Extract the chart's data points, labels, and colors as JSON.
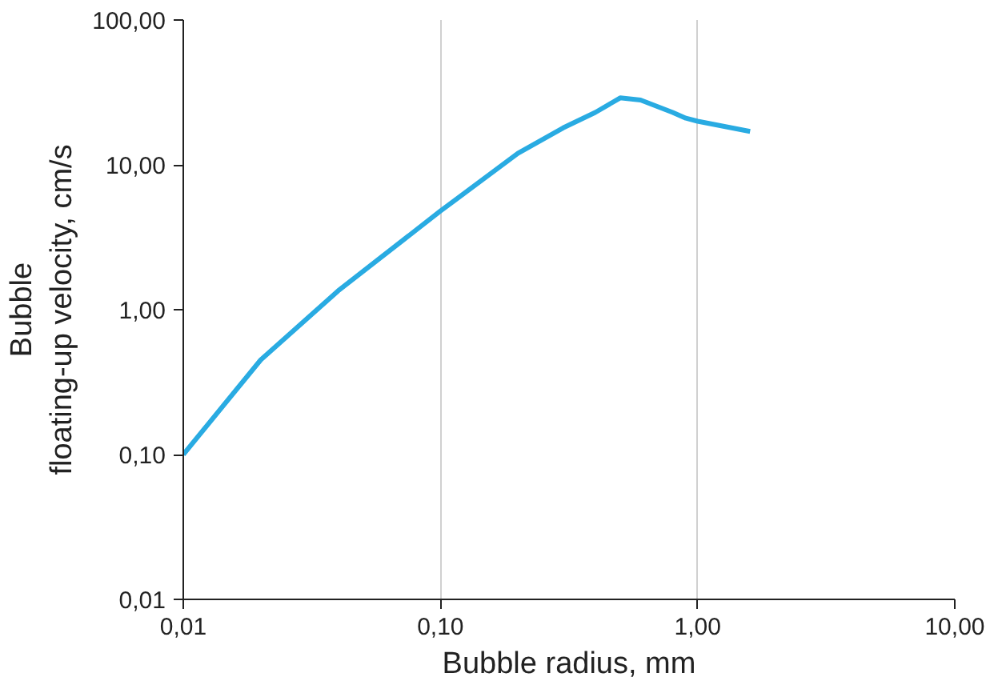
{
  "chart_data": {
    "type": "line",
    "xlabel": "Bubble radius, mm",
    "ylabel": "Bubble floating-up velocity, cm/s",
    "log": "xy",
    "grid": "x",
    "xlim": [
      0.01,
      10
    ],
    "ylim": [
      0.01,
      100
    ],
    "xticks": [
      {
        "value": 0.01,
        "label": "0,01"
      },
      {
        "value": 0.1,
        "label": "0,10"
      },
      {
        "value": 1,
        "label": "1,00"
      },
      {
        "value": 10,
        "label": "10,00"
      }
    ],
    "yticks": [
      {
        "value": 0.01,
        "label": "0,01"
      },
      {
        "value": 0.1,
        "label": "0,10"
      },
      {
        "value": 1,
        "label": "1,00"
      },
      {
        "value": 10,
        "label": "10,00"
      },
      {
        "value": 100,
        "label": "100,00"
      }
    ],
    "series": [
      {
        "color": "#29abe2",
        "x": [
          0.01,
          0.02,
          0.04,
          0.1,
          0.2,
          0.3,
          0.4,
          0.5,
          0.6,
          0.8,
          0.9,
          1.0,
          1.6
        ],
        "values": [
          0.1,
          0.45,
          1.35,
          4.8,
          12,
          18,
          23,
          29,
          28,
          23,
          21,
          20,
          17
        ]
      }
    ]
  }
}
